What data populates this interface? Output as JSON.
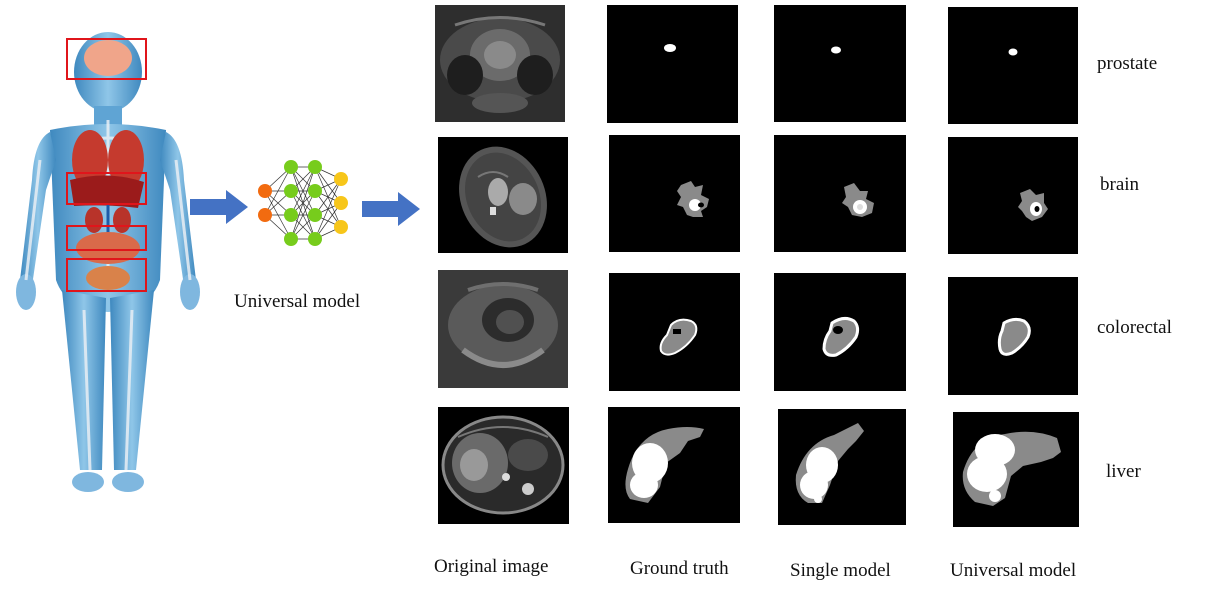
{
  "model_label": "Universal model",
  "column_labels": {
    "original": "Original image",
    "ground_truth": "Ground truth",
    "single": "Single model",
    "universal": "Universal model"
  },
  "rows": [
    {
      "organ": "prostate"
    },
    {
      "organ": "brain"
    },
    {
      "organ": "colorectal"
    },
    {
      "organ": "liver"
    }
  ],
  "colors": {
    "highlight_box": "#e0151b",
    "arrow": "#4472c4",
    "nn_input": "#f26b10",
    "nn_hidden": "#77cc1c",
    "nn_output": "#f7c61a"
  }
}
